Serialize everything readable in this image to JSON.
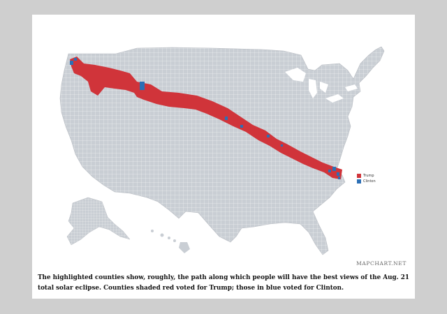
{
  "map": {
    "legend": [
      {
        "label": "Trump",
        "color": "#d0343a"
      },
      {
        "label": "Clinton",
        "color": "#2c6fb5"
      }
    ],
    "base_color": "#c9ced4",
    "border_color": "#ffffff"
  },
  "credit": "MAPCHART.NET",
  "caption": "The highlighted counties show, roughly, the path along which people will have the best views of the Aug. 21 total solar eclipse. Counties shaded red voted for Trump; those in blue voted for Clinton."
}
